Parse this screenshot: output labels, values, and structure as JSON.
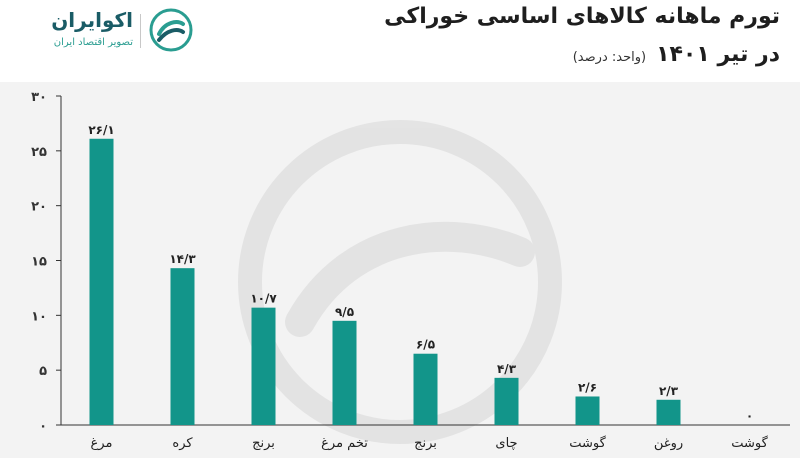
{
  "header": {
    "title": "تورم ماهانه کالاهای اساسی خوراکی",
    "subtitle": "در تیر ۱۴۰۱",
    "unit_note": "(واحد: درصد)"
  },
  "brand": {
    "name": "اکوایران",
    "tagline": "تصویر اقتصاد ایران",
    "icon": "ecoiran-logo-icon"
  },
  "colors": {
    "bar": "#12958a",
    "axis": "#333333",
    "logo": "#2a9d91"
  },
  "chart_data": {
    "type": "bar",
    "categories": [
      "مرغ",
      "کره",
      "برنج",
      "تخم مرغ",
      "برنج",
      "چای",
      "گوشت",
      "روغن",
      "گوشت"
    ],
    "values": [
      26.1,
      14.3,
      10.7,
      9.5,
      6.5,
      4.3,
      2.6,
      2.3,
      0
    ],
    "data_labels": [
      "۲۶/۱",
      "۱۴/۳",
      "۱۰/۷",
      "۹/۵",
      "۶/۵",
      "۴/۳",
      "۲/۶",
      "۲/۳",
      "۰"
    ],
    "y_ticks": [
      0,
      5,
      10,
      15,
      20,
      25,
      30
    ],
    "y_tick_labels": [
      "۰",
      "۵",
      "۱۰",
      "۱۵",
      "۲۰",
      "۲۵",
      "۳۰"
    ],
    "ylim": [
      0,
      30
    ],
    "grid": false,
    "title": "تورم ماهانه کالاهای اساسی خوراکی در تیر ۱۴۰۱",
    "xlabel": "",
    "ylabel": ""
  }
}
